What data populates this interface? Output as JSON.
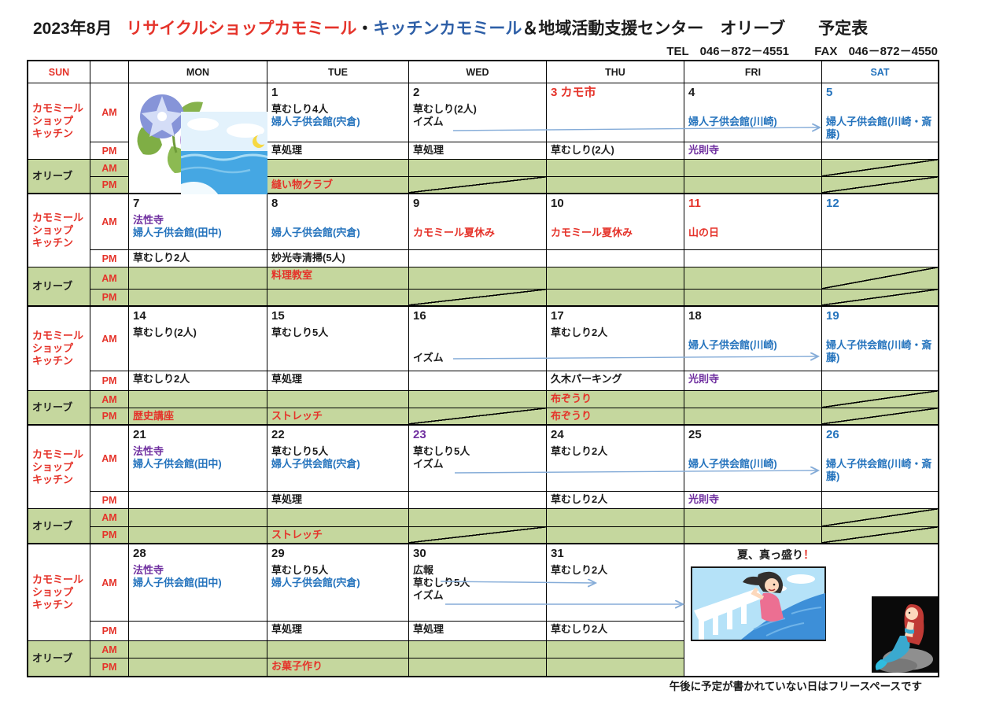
{
  "title": {
    "year_month": "2023年8月",
    "shop": "リサイクルショップカモミール",
    "dot": "・",
    "kitchen": "キッチンカモミール",
    "suffix": "＆地域活動支援センター　オリーブ　　予定表"
  },
  "contact": {
    "tel_label": "TEL",
    "tel_number": "046－872－4551",
    "fax_label": "FAX",
    "fax_number": "046－872－4550"
  },
  "colors": {
    "red": "#e5332a",
    "blue": "#2473bd",
    "purple": "#7030a0",
    "black": "#1b1b1b",
    "title_blue": "#2e5fa7",
    "green": "#c5d79e",
    "arrow": "#85acd8",
    "border": "#000000"
  },
  "summer": {
    "text": "夏、真っ盛り",
    "bang": "！"
  },
  "footer_note": "午後に予定が書かれていない日はフリースペースです",
  "illustrations": {
    "week1_monday": [
      "morning-glory-illustration",
      "sea-illustration"
    ],
    "week5_weekend": [
      "girl-on-ship-illustration",
      "mermaid-illustration"
    ]
  },
  "table": {
    "header": [
      {
        "t": "SUN",
        "c": "red"
      },
      {
        "t": ""
      },
      {
        "t": "MON",
        "c": "black"
      },
      {
        "t": "TUE",
        "c": "black"
      },
      {
        "t": "WED",
        "c": "black"
      },
      {
        "t": "THU",
        "c": "black"
      },
      {
        "t": "FRI",
        "c": "black"
      },
      {
        "t": "SAT",
        "c": "blue"
      }
    ],
    "side": {
      "kamomile": [
        "カモミール",
        "ショップ",
        "キッチン"
      ],
      "olive": "オリーブ",
      "am": "AM",
      "pm": "PM"
    },
    "weeks": [
      {
        "am": {
          "tue": [
            {
              "t": "1",
              "num": true
            },
            {
              "t": "草むしり4人"
            },
            {
              "t": "婦人子供会館(宍倉)",
              "c": "blue"
            }
          ],
          "wed": [
            {
              "t": "2",
              "num": true
            },
            {
              "t": "草むしり(2人)"
            },
            {
              "t": "イズム"
            }
          ],
          "thu": [
            {
              "t": "3 カモ市",
              "num": true,
              "c": "red"
            }
          ],
          "fri": [
            {
              "t": "4",
              "num": true
            },
            {
              "t": ""
            },
            {
              "t": "婦人子供会館(川崎)",
              "c": "blue"
            }
          ],
          "sat": [
            {
              "t": "5",
              "num": true,
              "c": "blue"
            },
            {
              "t": ""
            },
            {
              "t": "婦人子供会館(川崎・斎藤)",
              "c": "blue"
            }
          ]
        },
        "pm": {
          "tue": [
            {
              "t": "草処理"
            }
          ],
          "wed": [
            {
              "t": "草処理"
            }
          ],
          "thu": [
            {
              "t": "草むしり(2人)"
            }
          ],
          "fri": [
            {
              "t": "光則寺",
              "c": "purple"
            }
          ]
        },
        "olive_am": {
          "slash": [
            "sat"
          ]
        },
        "olive_pm": {
          "tue": [
            {
              "t": "縫い物クラブ",
              "c": "red"
            }
          ],
          "slash": [
            "wed",
            "sat"
          ]
        }
      },
      {
        "am": {
          "mon": [
            {
              "t": "7",
              "num": true
            },
            {
              "t": "法性寺",
              "c": "purple"
            },
            {
              "t": "婦人子供会館(田中)",
              "c": "blue"
            }
          ],
          "tue": [
            {
              "t": "8",
              "num": true
            },
            {
              "t": ""
            },
            {
              "t": "婦人子供会館(宍倉)",
              "c": "blue"
            }
          ],
          "wed": [
            {
              "t": "9",
              "num": true
            },
            {
              "t": ""
            },
            {
              "t": "カモミール夏休み",
              "c": "red"
            }
          ],
          "thu": [
            {
              "t": "10",
              "num": true
            },
            {
              "t": ""
            },
            {
              "t": "カモミール夏休み",
              "c": "red"
            }
          ],
          "fri": [
            {
              "t": "11",
              "num": true,
              "c": "red"
            },
            {
              "t": ""
            },
            {
              "t": "山の日",
              "c": "red"
            }
          ],
          "sat": [
            {
              "t": "12",
              "num": true,
              "c": "blue"
            }
          ]
        },
        "pm": {
          "mon": [
            {
              "t": "草むしり2人"
            }
          ],
          "tue": [
            {
              "t": "妙光寺清掃(5人)"
            }
          ]
        },
        "olive_am": {
          "tue": [
            {
              "t": "料理教室",
              "c": "red"
            }
          ],
          "slash": [
            "sat"
          ]
        },
        "olive_pm": {
          "slash": [
            "wed",
            "sat"
          ]
        }
      },
      {
        "am": {
          "mon": [
            {
              "t": "14",
              "num": true
            },
            {
              "t": "草むしり(2人)"
            }
          ],
          "tue": [
            {
              "t": "15",
              "num": true
            },
            {
              "t": "草むしり5人"
            }
          ],
          "wed": [
            {
              "t": "16",
              "num": true
            },
            {
              "t": ""
            },
            {
              "t": ""
            },
            {
              "t": "イズム"
            }
          ],
          "thu": [
            {
              "t": "17",
              "num": true
            },
            {
              "t": "草むしり2人"
            }
          ],
          "fri": [
            {
              "t": "18",
              "num": true
            },
            {
              "t": ""
            },
            {
              "t": "婦人子供会館(川崎)",
              "c": "blue"
            }
          ],
          "sat": [
            {
              "t": "19",
              "num": true,
              "c": "blue"
            },
            {
              "t": ""
            },
            {
              "t": "婦人子供会館(川崎・斎藤)",
              "c": "blue"
            }
          ]
        },
        "pm": {
          "mon": [
            {
              "t": "草むしり2人"
            }
          ],
          "tue": [
            {
              "t": "草処理"
            }
          ],
          "thu": [
            {
              "t": "久木パーキング"
            }
          ],
          "fri": [
            {
              "t": "光則寺",
              "c": "purple"
            }
          ]
        },
        "olive_am": {
          "thu": [
            {
              "t": "布ぞうり",
              "c": "red"
            }
          ],
          "slash": [
            "sat"
          ]
        },
        "olive_pm": {
          "mon": [
            {
              "t": "歴史講座",
              "c": "red"
            }
          ],
          "tue": [
            {
              "t": "ストレッチ",
              "c": "red"
            }
          ],
          "thu": [
            {
              "t": "布ぞうり",
              "c": "red"
            }
          ],
          "slash": [
            "wed",
            "sat"
          ]
        }
      },
      {
        "am": {
          "mon": [
            {
              "t": "21",
              "num": true
            },
            {
              "t": "法性寺",
              "c": "purple"
            },
            {
              "t": "婦人子供会館(田中)",
              "c": "blue"
            }
          ],
          "tue": [
            {
              "t": "22",
              "num": true
            },
            {
              "t": "草むしり5人"
            },
            {
              "t": "婦人子供会館(宍倉)",
              "c": "blue"
            }
          ],
          "wed": [
            {
              "t": "23",
              "num": true,
              "c": "purple"
            },
            {
              "t": "草むしり5人"
            },
            {
              "t": "イズム"
            }
          ],
          "thu": [
            {
              "t": "24",
              "num": true
            },
            {
              "t": "草むしり2人"
            }
          ],
          "fri": [
            {
              "t": "25",
              "num": true
            },
            {
              "t": ""
            },
            {
              "t": "婦人子供会館(川崎)",
              "c": "blue"
            }
          ],
          "sat": [
            {
              "t": "26",
              "num": true,
              "c": "blue"
            },
            {
              "t": ""
            },
            {
              "t": "婦人子供会館(川崎・斎藤)",
              "c": "blue"
            }
          ]
        },
        "pm": {
          "tue": [
            {
              "t": "草処理"
            }
          ],
          "thu": [
            {
              "t": "草むしり2人"
            }
          ],
          "fri": [
            {
              "t": "光則寺",
              "c": "purple"
            }
          ]
        },
        "olive_am": {
          "slash": [
            "sat"
          ]
        },
        "olive_pm": {
          "tue": [
            {
              "t": "ストレッチ",
              "c": "red"
            }
          ],
          "slash": [
            "wed",
            "sat"
          ]
        }
      },
      {
        "am": {
          "mon": [
            {
              "t": "28",
              "num": true
            },
            {
              "t": "法性寺",
              "c": "purple"
            },
            {
              "t": "婦人子供会館(田中)",
              "c": "blue"
            }
          ],
          "tue": [
            {
              "t": "29",
              "num": true
            },
            {
              "t": "草むしり5人"
            },
            {
              "t": "婦人子供会館(宍倉)",
              "c": "blue"
            }
          ],
          "wed": [
            {
              "t": "30",
              "num": true
            },
            {
              "t": "広報"
            },
            {
              "t": "草むしり5人"
            },
            {
              "t": "イズム"
            }
          ],
          "thu": [
            {
              "t": "31",
              "num": true
            },
            {
              "t": "草むしり2人"
            }
          ]
        },
        "pm": {
          "tue": [
            {
              "t": "草処理"
            }
          ],
          "wed": [
            {
              "t": "草処理"
            }
          ],
          "thu": [
            {
              "t": "草むしり2人"
            }
          ]
        },
        "olive_am": {},
        "olive_pm": {
          "tue": [
            {
              "t": "お菓子作り",
              "c": "red"
            }
          ]
        }
      }
    ]
  }
}
